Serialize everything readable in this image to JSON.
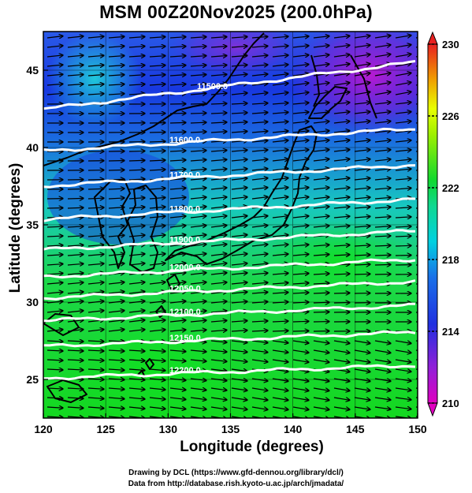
{
  "title": "MSM 00Z20Nov2025 (200.0hPa)",
  "axes": {
    "xlabel": "Longitude (degrees)",
    "ylabel": "Latitude  (degrees)",
    "x_ticks": [
      "120",
      "125",
      "130",
      "135",
      "140",
      "145",
      "150"
    ],
    "y_ticks": [
      "25",
      "30",
      "35",
      "40",
      "45"
    ]
  },
  "colorbar": {
    "labels": [
      "230",
      "226",
      "222",
      "218",
      "214",
      "210"
    ]
  },
  "map_data": {
    "type": "contour+vector+shaded",
    "region": "Japan / East Asia",
    "x_range": [
      120,
      150
    ],
    "y_range": [
      22.5,
      47.5
    ],
    "shading": {
      "name": "temperature",
      "min": 210,
      "max": 230
    },
    "contours": [
      {
        "label": "11500.0",
        "lat": 44.0
      },
      {
        "label": "11600.0",
        "lat": 40.5
      },
      {
        "label": "11700.0",
        "lat": 38.2
      },
      {
        "label": "11800.0",
        "lat": 36.0
      },
      {
        "label": "11900.0",
        "lat": 34.0
      },
      {
        "label": "12000.0",
        "lat": 32.2
      },
      {
        "label": "12050.0",
        "lat": 30.8
      },
      {
        "label": "12100.0",
        "lat": 29.3
      },
      {
        "label": "12150.0",
        "lat": 27.6
      },
      {
        "label": "12200.0",
        "lat": 25.5
      }
    ]
  },
  "credits": {
    "line1": "Drawing by DCL (https://www.gfd-dennou.org/library/dcl/)",
    "line2": "Data from http://database.rish.kyoto-u.ac.jp/arch/jmadata/"
  },
  "colors": {
    "low": "#e000c0",
    "mid_blue": "#1a44e0",
    "cyan": "#00d8e0",
    "green": "#10d830",
    "yellow": "#e8ff00",
    "high": "#e82020",
    "contour": "#ffffff",
    "vector": "#000000"
  }
}
